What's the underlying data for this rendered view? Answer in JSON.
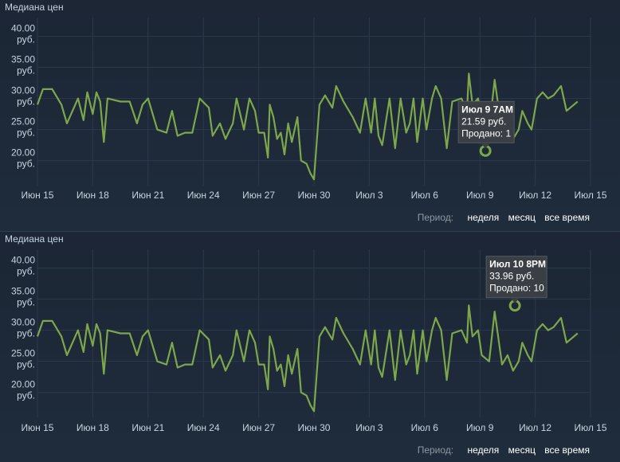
{
  "colors": {
    "line": "#7ea64b",
    "grid": "#2a3a4d",
    "axis": "#c6d4df",
    "tooltip_bg": "#3a3f45"
  },
  "charts": [
    {
      "title": "Медиана цен",
      "tooltip": {
        "title": "Июл 9 7AM",
        "price": "21.59 руб.",
        "sold": "Продано: 1"
      },
      "period": {
        "label": "Период:",
        "options": [
          "неделя",
          "месяц",
          "все время"
        ]
      }
    },
    {
      "title": "Медиана цен",
      "tooltip": {
        "title": "Июл 10 8PM",
        "price": "33.96 руб.",
        "sold": "Продано: 10"
      },
      "period": {
        "label": "Период:",
        "options": [
          "неделя",
          "месяц",
          "все время"
        ]
      }
    }
  ],
  "chart_data": [
    {
      "type": "line",
      "title": "Медиана цен",
      "xlabel": "",
      "ylabel": "",
      "ylim": [
        16,
        43
      ],
      "yticks": [
        {
          "value": 40,
          "line1": "40.00",
          "line2": "руб."
        },
        {
          "value": 35,
          "line1": "35.00",
          "line2": "руб."
        },
        {
          "value": 30,
          "line1": "30.00",
          "line2": "руб."
        },
        {
          "value": 25,
          "line1": "25.00",
          "line2": "руб."
        },
        {
          "value": 20,
          "line1": "20.00",
          "line2": "руб."
        }
      ],
      "xticks": [
        "Июн 15",
        "Июн 18",
        "Июн 21",
        "Июн 24",
        "Июн 27",
        "Июн 30",
        "Июл 3",
        "Июл 6",
        "Июл 9",
        "Июл 12",
        "Июл 15"
      ],
      "xrange": [
        0,
        30
      ],
      "highlight": {
        "x": 24.3,
        "y": 21.59
      },
      "series": [
        {
          "values": [
            [
              0,
              29
            ],
            [
              0.3,
              31.5
            ],
            [
              0.8,
              31.5
            ],
            [
              1.3,
              29
            ],
            [
              1.6,
              26
            ],
            [
              2.2,
              30
            ],
            [
              2.5,
              26.5
            ],
            [
              2.7,
              31
            ],
            [
              3,
              27.5
            ],
            [
              3.2,
              31
            ],
            [
              3.4,
              29.5
            ],
            [
              3.6,
              23
            ],
            [
              3.8,
              30
            ],
            [
              4.5,
              29.5
            ],
            [
              5,
              29.5
            ],
            [
              5.4,
              26
            ],
            [
              5.7,
              29
            ],
            [
              6,
              30
            ],
            [
              6.5,
              25
            ],
            [
              7,
              24.5
            ],
            [
              7.3,
              28
            ],
            [
              7.6,
              24
            ],
            [
              8,
              24.5
            ],
            [
              8.4,
              24.5
            ],
            [
              8.8,
              30
            ],
            [
              9.3,
              28.5
            ],
            [
              9.5,
              24
            ],
            [
              9.9,
              26
            ],
            [
              10.2,
              23.5
            ],
            [
              10.6,
              26
            ],
            [
              10.8,
              30
            ],
            [
              11.2,
              25
            ],
            [
              11.5,
              30
            ],
            [
              11.8,
              28
            ],
            [
              12,
              24.5
            ],
            [
              12.3,
              24.5
            ],
            [
              12.5,
              20.5
            ],
            [
              12.6,
              29
            ],
            [
              12.8,
              27
            ],
            [
              13,
              23.5
            ],
            [
              13.2,
              24.5
            ],
            [
              13.4,
              21
            ],
            [
              13.6,
              26
            ],
            [
              13.8,
              23
            ],
            [
              14.1,
              27
            ],
            [
              14.3,
              20
            ],
            [
              14.6,
              19.5
            ],
            [
              14.8,
              18
            ],
            [
              15,
              17
            ],
            [
              15.3,
              29
            ],
            [
              15.6,
              30.5
            ],
            [
              16,
              28.5
            ],
            [
              16.2,
              32
            ],
            [
              16.6,
              29.5
            ],
            [
              17.1,
              27
            ],
            [
              17.5,
              24.5
            ],
            [
              17.8,
              30
            ],
            [
              18.1,
              24.5
            ],
            [
              18.3,
              30
            ],
            [
              18.5,
              24
            ],
            [
              18.7,
              22.5
            ],
            [
              19.1,
              30
            ],
            [
              19.4,
              22
            ],
            [
              19.7,
              30
            ],
            [
              20,
              24.5
            ],
            [
              20.2,
              26
            ],
            [
              20.4,
              30
            ],
            [
              20.6,
              23
            ],
            [
              20.9,
              30
            ],
            [
              21.1,
              25
            ],
            [
              21.4,
              30
            ],
            [
              21.6,
              32
            ],
            [
              21.9,
              30
            ],
            [
              22.2,
              22
            ],
            [
              22.5,
              29.5
            ],
            [
              23,
              30
            ],
            [
              23.3,
              28
            ],
            [
              23.4,
              34
            ],
            [
              23.6,
              29
            ],
            [
              23.9,
              30
            ],
            [
              24.1,
              26
            ],
            [
              24.5,
              25
            ],
            [
              24.8,
              33
            ],
            [
              25.2,
              24.5
            ],
            [
              25.5,
              26
            ],
            [
              25.8,
              23.5
            ],
            [
              26.1,
              25
            ],
            [
              26.3,
              28
            ],
            [
              26.6,
              26
            ],
            [
              26.8,
              25
            ],
            [
              27.1,
              30
            ],
            [
              27.4,
              31
            ],
            [
              27.7,
              30
            ],
            [
              28,
              30.5
            ],
            [
              28.4,
              32
            ],
            [
              28.7,
              28
            ],
            [
              29.3,
              29.5
            ]
          ]
        }
      ]
    },
    {
      "type": "line",
      "title": "Медиана цен",
      "xlabel": "",
      "ylabel": "",
      "ylim": [
        16,
        43
      ],
      "yticks": [
        {
          "value": 40,
          "line1": "40.00",
          "line2": "руб."
        },
        {
          "value": 35,
          "line1": "35.00",
          "line2": "руб."
        },
        {
          "value": 30,
          "line1": "30.00",
          "line2": "руб."
        },
        {
          "value": 25,
          "line1": "25.00",
          "line2": "руб."
        },
        {
          "value": 20,
          "line1": "20.00",
          "line2": "руб."
        }
      ],
      "xticks": [
        "Июн 15",
        "Июн 18",
        "Июн 21",
        "Июн 24",
        "Июн 27",
        "Июн 30",
        "Июл 3",
        "Июл 6",
        "Июл 9",
        "Июл 12",
        "Июл 15"
      ],
      "xrange": [
        0,
        30
      ],
      "highlight": {
        "x": 25.9,
        "y": 33.96
      },
      "series": [
        {
          "values": [
            [
              0,
              29
            ],
            [
              0.3,
              31.5
            ],
            [
              0.8,
              31.5
            ],
            [
              1.3,
              29
            ],
            [
              1.6,
              26
            ],
            [
              2.2,
              30
            ],
            [
              2.5,
              26.5
            ],
            [
              2.7,
              31
            ],
            [
              3,
              27.5
            ],
            [
              3.2,
              31
            ],
            [
              3.4,
              29.5
            ],
            [
              3.6,
              23
            ],
            [
              3.8,
              30
            ],
            [
              4.5,
              29.5
            ],
            [
              5,
              29.5
            ],
            [
              5.4,
              26
            ],
            [
              5.7,
              29
            ],
            [
              6,
              30
            ],
            [
              6.5,
              25
            ],
            [
              7,
              24.5
            ],
            [
              7.3,
              28
            ],
            [
              7.6,
              24
            ],
            [
              8,
              24.5
            ],
            [
              8.4,
              24.5
            ],
            [
              8.8,
              30
            ],
            [
              9.3,
              28.5
            ],
            [
              9.5,
              24
            ],
            [
              9.9,
              26
            ],
            [
              10.2,
              23.5
            ],
            [
              10.6,
              26
            ],
            [
              10.8,
              30
            ],
            [
              11.2,
              25
            ],
            [
              11.5,
              30
            ],
            [
              11.8,
              28
            ],
            [
              12,
              24.5
            ],
            [
              12.3,
              24.5
            ],
            [
              12.5,
              20.5
            ],
            [
              12.6,
              29
            ],
            [
              12.8,
              27
            ],
            [
              13,
              23.5
            ],
            [
              13.2,
              24.5
            ],
            [
              13.4,
              21
            ],
            [
              13.6,
              26
            ],
            [
              13.8,
              23
            ],
            [
              14.1,
              27
            ],
            [
              14.3,
              20
            ],
            [
              14.6,
              19.5
            ],
            [
              14.8,
              18
            ],
            [
              15,
              17
            ],
            [
              15.3,
              29
            ],
            [
              15.6,
              30.5
            ],
            [
              16,
              28.5
            ],
            [
              16.2,
              32
            ],
            [
              16.6,
              29.5
            ],
            [
              17.1,
              27
            ],
            [
              17.5,
              24.5
            ],
            [
              17.8,
              30
            ],
            [
              18.1,
              24.5
            ],
            [
              18.3,
              30
            ],
            [
              18.5,
              24
            ],
            [
              18.7,
              22.5
            ],
            [
              19.1,
              30
            ],
            [
              19.4,
              22
            ],
            [
              19.7,
              30
            ],
            [
              20,
              24.5
            ],
            [
              20.2,
              26
            ],
            [
              20.4,
              30
            ],
            [
              20.6,
              23
            ],
            [
              20.9,
              30
            ],
            [
              21.1,
              25
            ],
            [
              21.4,
              30
            ],
            [
              21.6,
              32
            ],
            [
              21.9,
              30
            ],
            [
              22.2,
              22
            ],
            [
              22.5,
              29.5
            ],
            [
              23,
              30
            ],
            [
              23.3,
              28
            ],
            [
              23.4,
              34
            ],
            [
              23.6,
              29
            ],
            [
              23.9,
              30
            ],
            [
              24.1,
              26
            ],
            [
              24.5,
              25
            ],
            [
              24.8,
              33
            ],
            [
              25.2,
              24.5
            ],
            [
              25.5,
              26
            ],
            [
              25.8,
              23.5
            ],
            [
              26.1,
              25
            ],
            [
              26.3,
              28
            ],
            [
              26.6,
              26
            ],
            [
              26.8,
              25
            ],
            [
              27.1,
              30
            ],
            [
              27.4,
              31
            ],
            [
              27.7,
              30
            ],
            [
              28,
              30.5
            ],
            [
              28.4,
              32
            ],
            [
              28.7,
              28
            ],
            [
              29.3,
              29.5
            ]
          ]
        }
      ]
    }
  ]
}
